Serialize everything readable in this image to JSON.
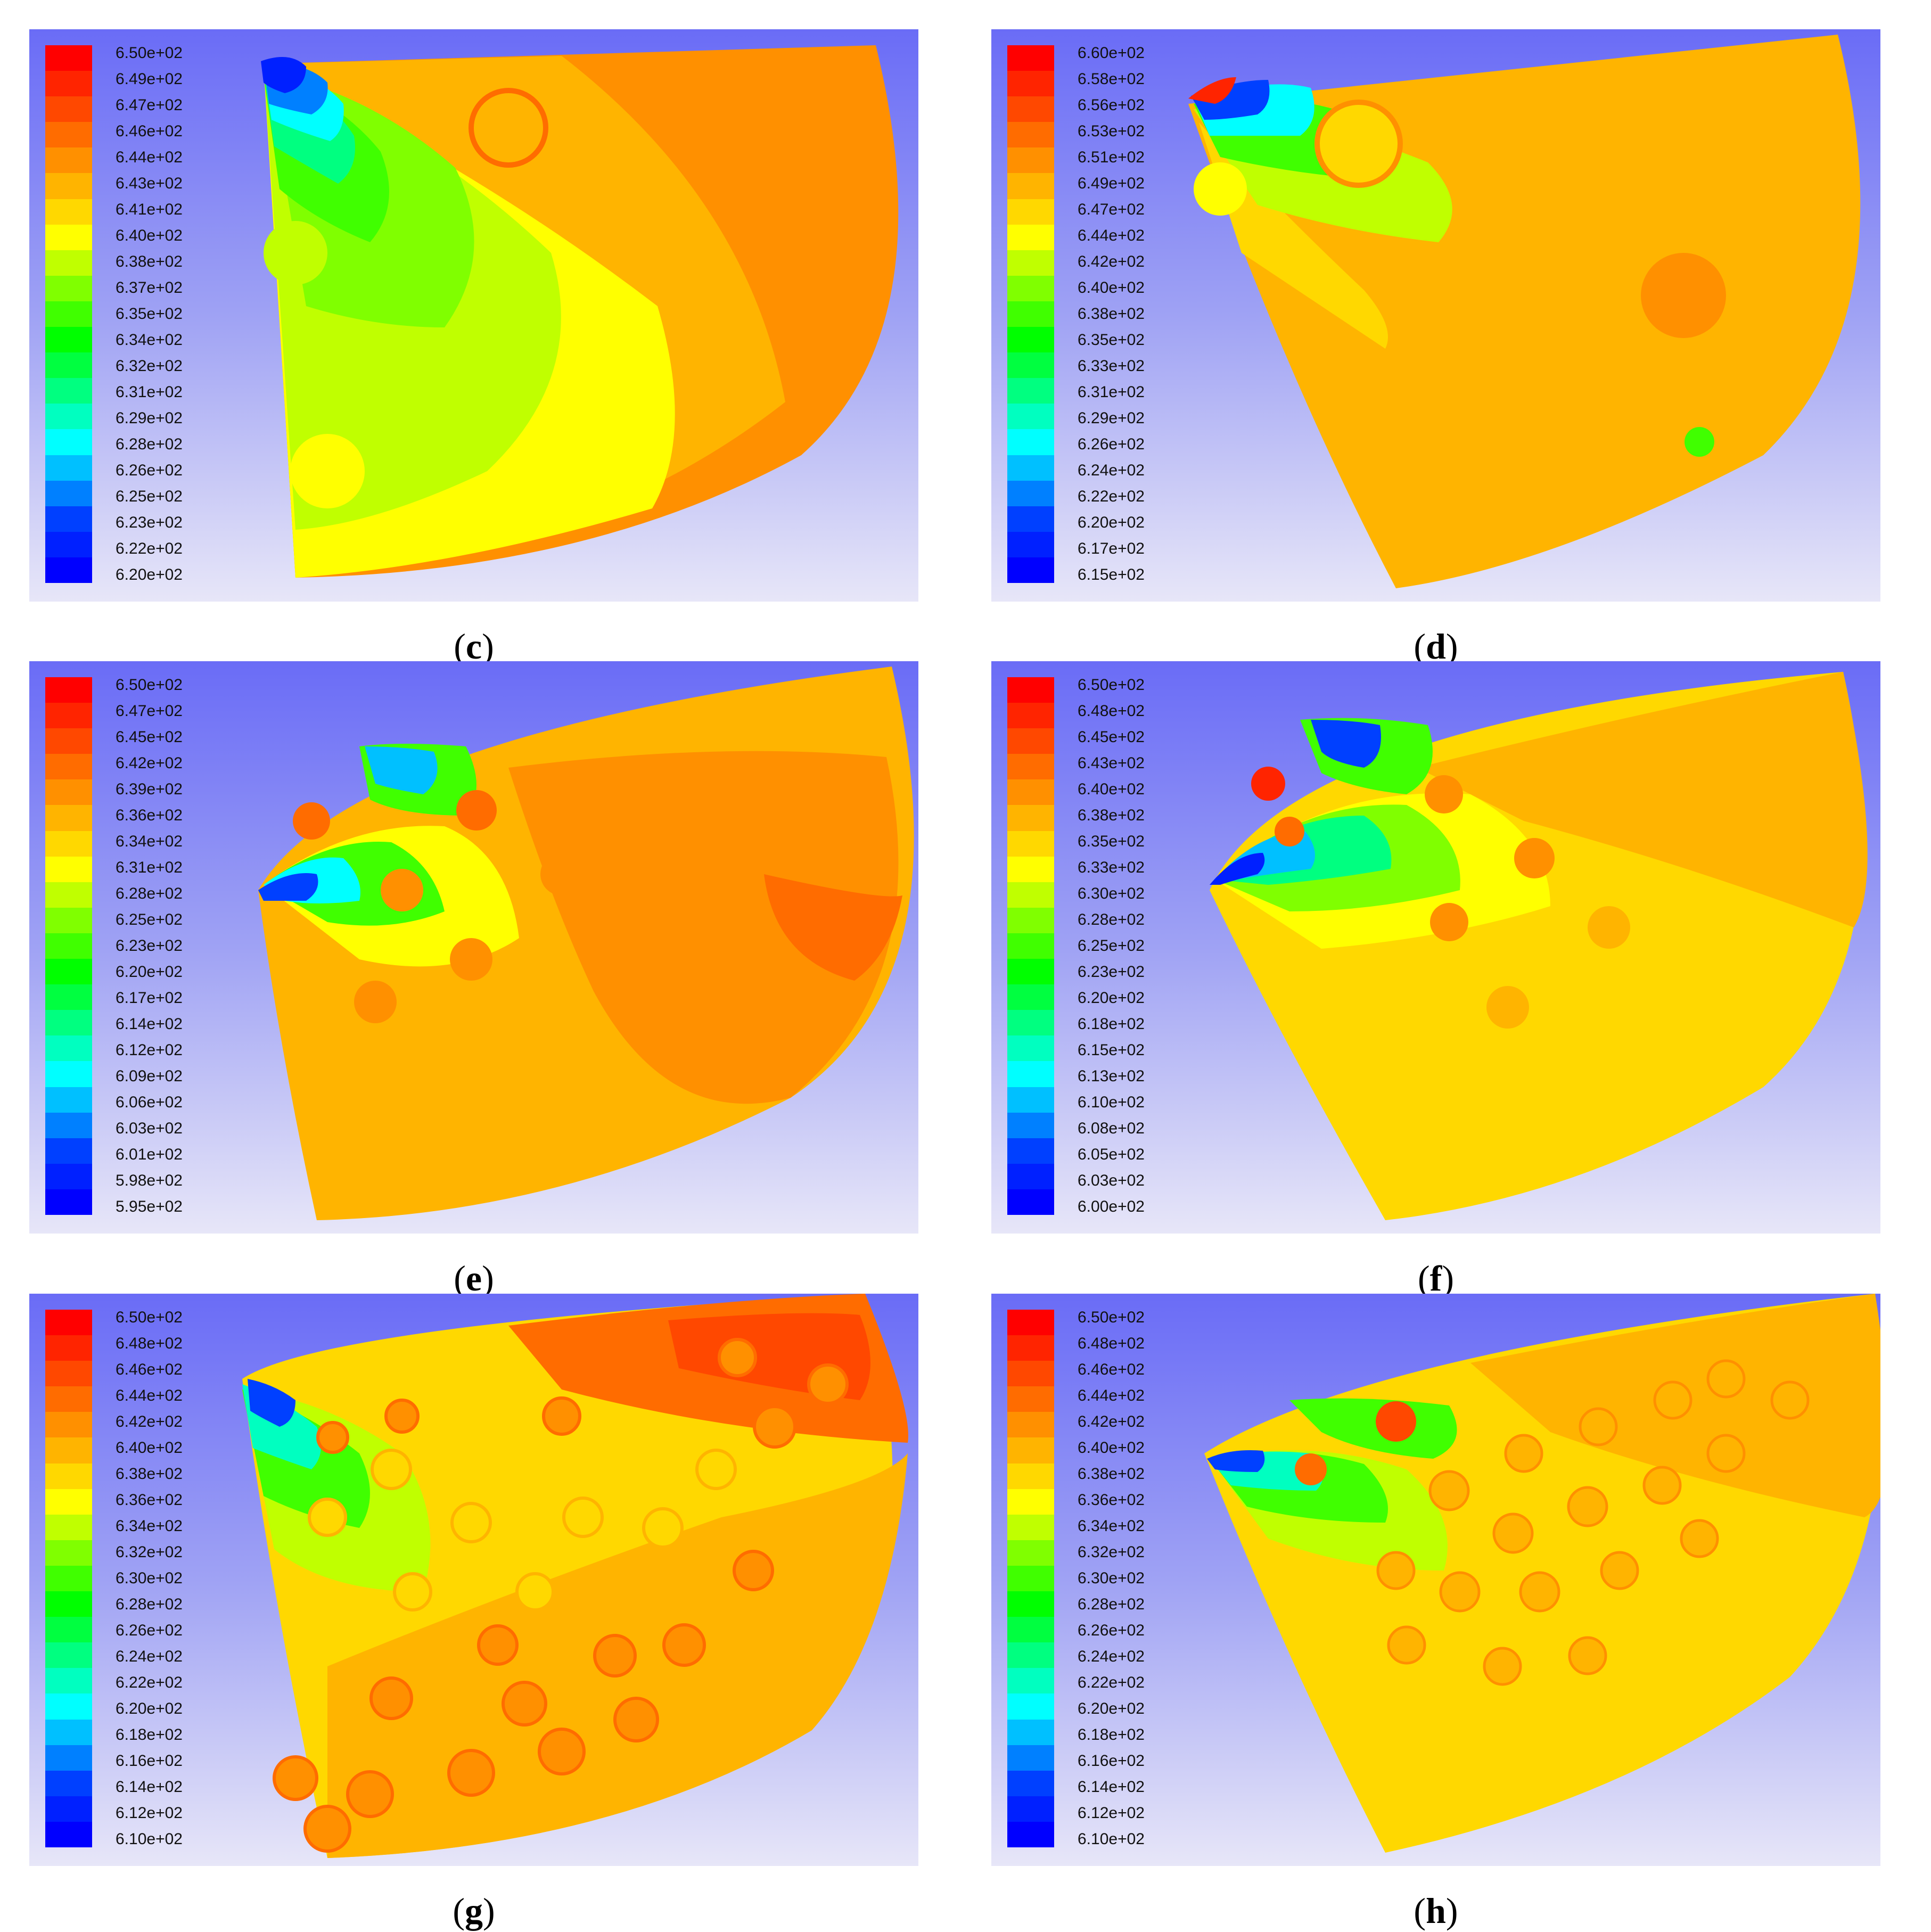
{
  "palette": [
    "#ff0000",
    "#ff2400",
    "#ff4800",
    "#ff6c00",
    "#ff9000",
    "#ffb400",
    "#ffd800",
    "#ffff00",
    "#c0ff00",
    "#80ff00",
    "#40ff00",
    "#00ff00",
    "#00ff40",
    "#00ff80",
    "#00ffc0",
    "#00ffff",
    "#00c0ff",
    "#0080ff",
    "#0040ff",
    "#0020ff",
    "#0000ff"
  ],
  "panels": [
    {
      "id": "c",
      "label": "c",
      "ticks": [
        "6.50e+02",
        "6.49e+02",
        "6.47e+02",
        "6.46e+02",
        "6.44e+02",
        "6.43e+02",
        "6.41e+02",
        "6.40e+02",
        "6.38e+02",
        "6.37e+02",
        "6.35e+02",
        "6.34e+02",
        "6.32e+02",
        "6.31e+02",
        "6.29e+02",
        "6.28e+02",
        "6.26e+02",
        "6.25e+02",
        "6.23e+02",
        "6.22e+02",
        "6.20e+02"
      ]
    },
    {
      "id": "d",
      "label": "d",
      "ticks": [
        "6.60e+02",
        "6.58e+02",
        "6.56e+02",
        "6.53e+02",
        "6.51e+02",
        "6.49e+02",
        "6.47e+02",
        "6.44e+02",
        "6.42e+02",
        "6.40e+02",
        "6.38e+02",
        "6.35e+02",
        "6.33e+02",
        "6.31e+02",
        "6.29e+02",
        "6.26e+02",
        "6.24e+02",
        "6.22e+02",
        "6.20e+02",
        "6.17e+02",
        "6.15e+02"
      ]
    },
    {
      "id": "e",
      "label": "e",
      "ticks": [
        "6.50e+02",
        "6.47e+02",
        "6.45e+02",
        "6.42e+02",
        "6.39e+02",
        "6.36e+02",
        "6.34e+02",
        "6.31e+02",
        "6.28e+02",
        "6.25e+02",
        "6.23e+02",
        "6.20e+02",
        "6.17e+02",
        "6.14e+02",
        "6.12e+02",
        "6.09e+02",
        "6.06e+02",
        "6.03e+02",
        "6.01e+02",
        "5.98e+02",
        "5.95e+02"
      ]
    },
    {
      "id": "f",
      "label": "f",
      "ticks": [
        "6.50e+02",
        "6.48e+02",
        "6.45e+02",
        "6.43e+02",
        "6.40e+02",
        "6.38e+02",
        "6.35e+02",
        "6.33e+02",
        "6.30e+02",
        "6.28e+02",
        "6.25e+02",
        "6.23e+02",
        "6.20e+02",
        "6.18e+02",
        "6.15e+02",
        "6.13e+02",
        "6.10e+02",
        "6.08e+02",
        "6.05e+02",
        "6.03e+02",
        "6.00e+02"
      ]
    },
    {
      "id": "g",
      "label": "g",
      "ticks": [
        "6.50e+02",
        "6.48e+02",
        "6.46e+02",
        "6.44e+02",
        "6.42e+02",
        "6.40e+02",
        "6.38e+02",
        "6.36e+02",
        "6.34e+02",
        "6.32e+02",
        "6.30e+02",
        "6.28e+02",
        "6.26e+02",
        "6.24e+02",
        "6.22e+02",
        "6.20e+02",
        "6.18e+02",
        "6.16e+02",
        "6.14e+02",
        "6.12e+02",
        "6.10e+02"
      ]
    },
    {
      "id": "h",
      "label": "h",
      "ticks": [
        "6.50e+02",
        "6.48e+02",
        "6.46e+02",
        "6.44e+02",
        "6.42e+02",
        "6.40e+02",
        "6.38e+02",
        "6.36e+02",
        "6.34e+02",
        "6.32e+02",
        "6.30e+02",
        "6.28e+02",
        "6.26e+02",
        "6.24e+02",
        "6.22e+02",
        "6.20e+02",
        "6.18e+02",
        "6.16e+02",
        "6.14e+02",
        "6.12e+02",
        "6.10e+02"
      ]
    }
  ]
}
